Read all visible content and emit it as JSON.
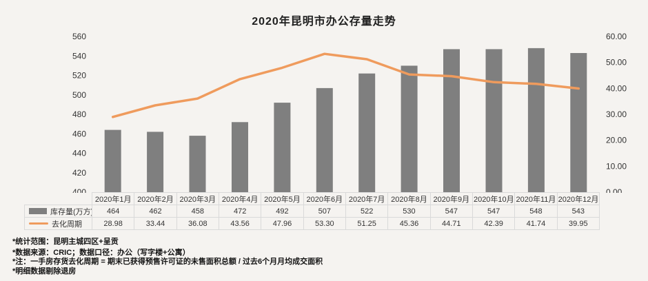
{
  "title": "2020年昆明市办公存量走势",
  "colors": {
    "background": "#f5f3f0",
    "bar": "#7f7f7f",
    "line": "#ef9b5d",
    "table_border": "#d9d9d9",
    "text": "#333333"
  },
  "chart_data": {
    "type": "bar+line",
    "title": "2020年昆明市办公存量走势",
    "categories": [
      "2020年1月",
      "2020年2月",
      "2020年3月",
      "2020年4月",
      "2020年5月",
      "2020年6月",
      "2020年7月",
      "2020年8月",
      "2020年9月",
      "2020年10月",
      "2020年11月",
      "2020年12月"
    ],
    "series": [
      {
        "name": "库存量(万方)",
        "type": "bar",
        "axis": "left",
        "values": [
          464,
          462,
          458,
          472,
          492,
          507,
          522,
          530,
          547,
          547,
          548,
          543
        ]
      },
      {
        "name": "去化周期",
        "type": "line",
        "axis": "right",
        "values": [
          28.98,
          33.44,
          36.08,
          43.56,
          47.96,
          53.3,
          51.25,
          45.36,
          44.71,
          42.39,
          41.74,
          39.95
        ]
      }
    ],
    "left_axis": {
      "min": 400,
      "max": 560,
      "step": 20,
      "ticks": [
        "560",
        "540",
        "520",
        "500",
        "480",
        "460",
        "440",
        "420",
        "400"
      ]
    },
    "right_axis": {
      "min": 0,
      "max": 60,
      "step": 10,
      "ticks": [
        "60.00",
        "50.00",
        "40.00",
        "30.00",
        "20.00",
        "10.00",
        "0.00"
      ]
    },
    "grid": false,
    "legend_position": "table-left"
  },
  "table": {
    "months": [
      "2020年1月",
      "2020年2月",
      "2020年3月",
      "2020年4月",
      "2020年5月",
      "2020年6月",
      "2020年7月",
      "2020年8月",
      "2020年9月",
      "2020年10月",
      "2020年11月",
      "2020年12月"
    ],
    "row_inventory": {
      "label": "库存量(万方)",
      "values": [
        "464",
        "462",
        "458",
        "472",
        "492",
        "507",
        "522",
        "530",
        "547",
        "547",
        "548",
        "543"
      ]
    },
    "row_cycle": {
      "label": "去化周期",
      "values": [
        "28.98",
        "33.44",
        "36.08",
        "43.56",
        "47.96",
        "53.30",
        "51.25",
        "45.36",
        "44.71",
        "42.39",
        "41.74",
        "39.95"
      ]
    }
  },
  "footnotes": [
    "*统计范围：昆明主城四区+呈贡",
    "*数据来源：CRIC；数据口径：办公（写字楼+公寓）",
    "*注：一手房存货去化周期 = 期末已获得预售许可证的未售面积总额 / 过去6个月月均成交面积",
    "*明细数据剔除退房"
  ]
}
